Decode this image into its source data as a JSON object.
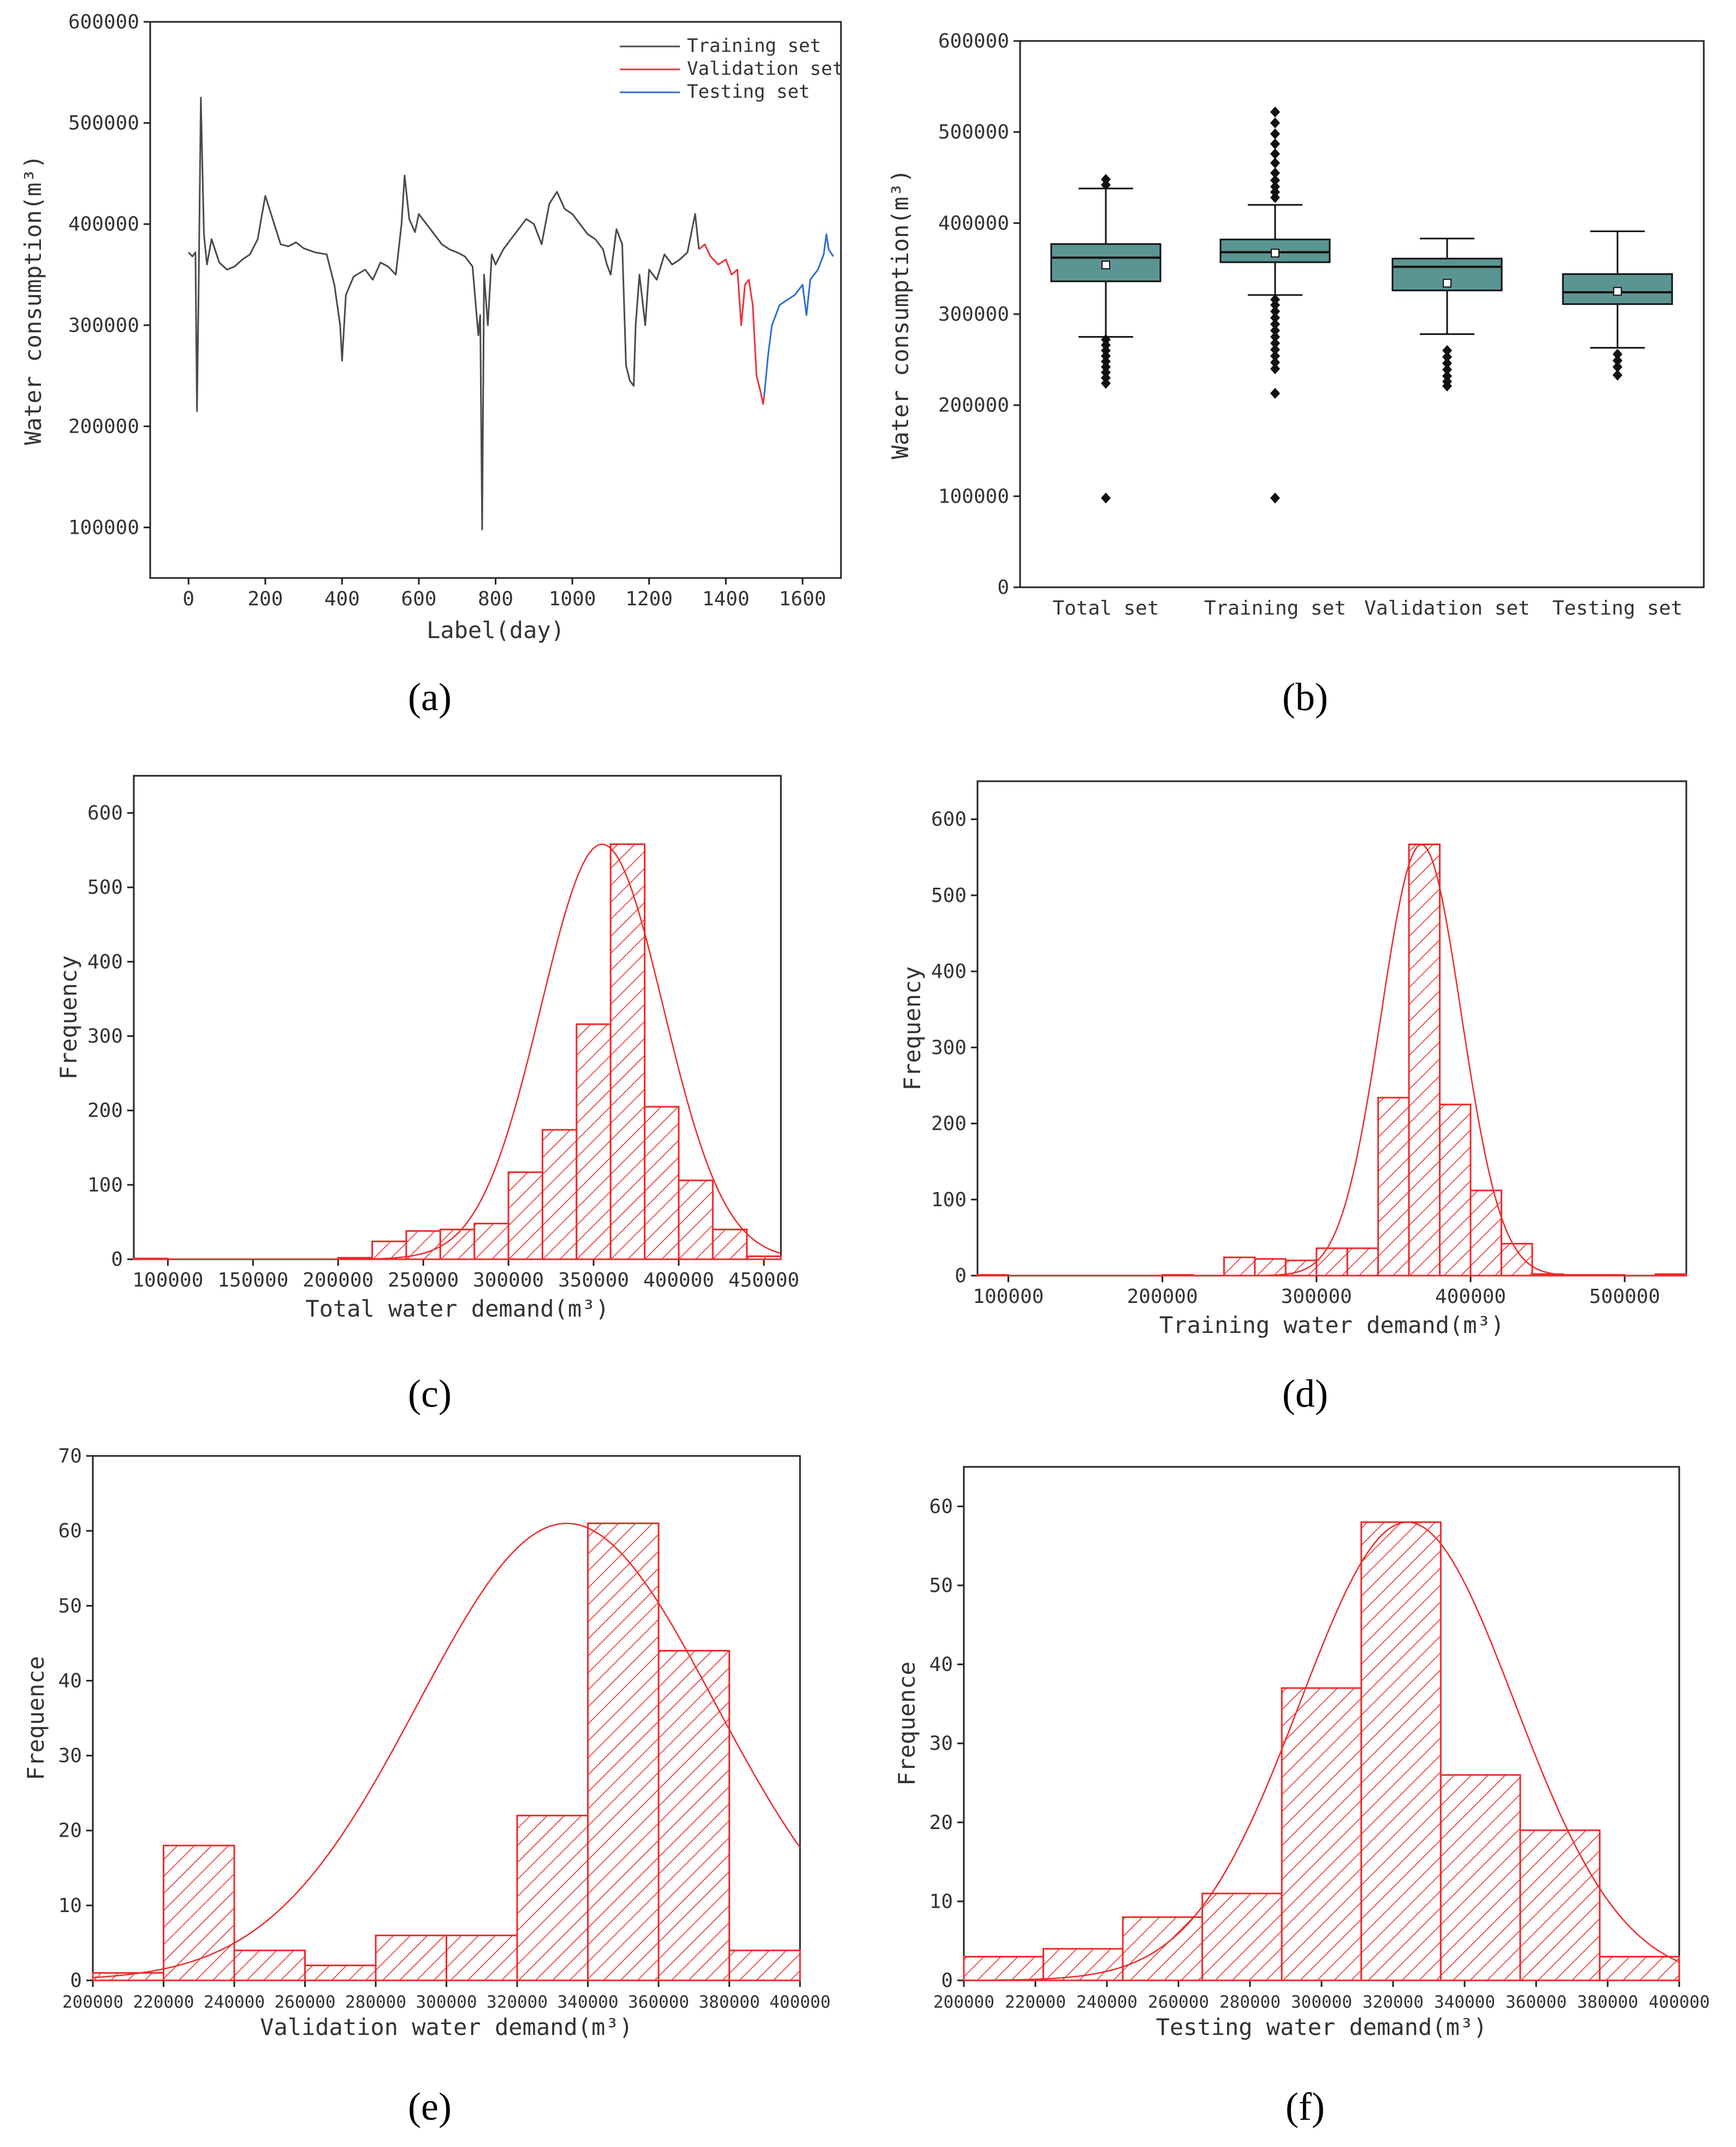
{
  "figure": {
    "panels": [
      "(a)",
      "(b)",
      "(c)",
      "(d)",
      "(e)",
      "(f)"
    ]
  },
  "colors": {
    "training": "#4a4a4a",
    "validation": "#e8363c",
    "testing": "#2d6fd4",
    "box_fill": "#5b9593",
    "hist": "#ee2a2a"
  },
  "chart_data": [
    {
      "id": "a",
      "type": "line",
      "xlabel": "Label(day)",
      "ylabel": "Water consumption(m³)",
      "xlim": [
        -100,
        1700
      ],
      "ylim": [
        50000,
        600000
      ],
      "xticks": [
        0,
        200,
        400,
        600,
        800,
        1000,
        1200,
        1400,
        1600
      ],
      "yticks": [
        100000,
        200000,
        300000,
        400000,
        500000,
        600000
      ],
      "xtick_labels": [
        "0",
        "200",
        "400",
        "600",
        "800",
        "1000",
        "1200",
        "1400",
        "1600"
      ],
      "ytick_labels": [
        "100000",
        "200000",
        "300000",
        "400000",
        "500000",
        "600000"
      ],
      "legend": [
        "Training set",
        "Validation set",
        "Testing set"
      ],
      "series": [
        {
          "name": "Training set",
          "points": [
            [
              0,
              372000
            ],
            [
              10,
              368000
            ],
            [
              18,
              372000
            ],
            [
              22,
              215000
            ],
            [
              26,
              330000
            ],
            [
              32,
              525000
            ],
            [
              40,
              390000
            ],
            [
              48,
              360000
            ],
            [
              60,
              385000
            ],
            [
              80,
              362000
            ],
            [
              100,
              355000
            ],
            [
              120,
              358000
            ],
            [
              140,
              365000
            ],
            [
              160,
              370000
            ],
            [
              180,
              385000
            ],
            [
              200,
              428000
            ],
            [
              215,
              410000
            ],
            [
              240,
              380000
            ],
            [
              260,
              378000
            ],
            [
              280,
              382000
            ],
            [
              300,
              376000
            ],
            [
              330,
              372000
            ],
            [
              360,
              370000
            ],
            [
              380,
              340000
            ],
            [
              395,
              300000
            ],
            [
              400,
              265000
            ],
            [
              410,
              330000
            ],
            [
              430,
              348000
            ],
            [
              460,
              355000
            ],
            [
              480,
              345000
            ],
            [
              500,
              362000
            ],
            [
              520,
              358000
            ],
            [
              540,
              350000
            ],
            [
              555,
              400000
            ],
            [
              563,
              448000
            ],
            [
              575,
              405000
            ],
            [
              590,
              392000
            ],
            [
              600,
              410000
            ],
            [
              620,
              400000
            ],
            [
              640,
              390000
            ],
            [
              660,
              380000
            ],
            [
              680,
              375000
            ],
            [
              700,
              372000
            ],
            [
              720,
              368000
            ],
            [
              740,
              358000
            ],
            [
              755,
              290000
            ],
            [
              760,
              310000
            ],
            [
              765,
              98000
            ],
            [
              770,
              350000
            ],
            [
              780,
              300000
            ],
            [
              790,
              370000
            ],
            [
              800,
              360000
            ],
            [
              820,
              375000
            ],
            [
              840,
              385000
            ],
            [
              860,
              395000
            ],
            [
              880,
              405000
            ],
            [
              900,
              400000
            ],
            [
              920,
              380000
            ],
            [
              940,
              420000
            ],
            [
              960,
              432000
            ],
            [
              980,
              415000
            ],
            [
              1000,
              410000
            ],
            [
              1020,
              400000
            ],
            [
              1040,
              390000
            ],
            [
              1060,
              385000
            ],
            [
              1080,
              375000
            ],
            [
              1090,
              360000
            ],
            [
              1100,
              350000
            ],
            [
              1115,
              395000
            ],
            [
              1130,
              380000
            ],
            [
              1140,
              260000
            ],
            [
              1150,
              245000
            ],
            [
              1160,
              240000
            ],
            [
              1165,
              300000
            ],
            [
              1175,
              350000
            ],
            [
              1190,
              300000
            ],
            [
              1200,
              355000
            ],
            [
              1220,
              345000
            ],
            [
              1240,
              370000
            ],
            [
              1260,
              360000
            ],
            [
              1280,
              365000
            ],
            [
              1300,
              372000
            ],
            [
              1320,
              410000
            ],
            [
              1330,
              375000
            ]
          ]
        },
        {
          "name": "Validation set",
          "points": [
            [
              1330,
              375000
            ],
            [
              1345,
              380000
            ],
            [
              1360,
              368000
            ],
            [
              1380,
              360000
            ],
            [
              1400,
              365000
            ],
            [
              1415,
              350000
            ],
            [
              1430,
              355000
            ],
            [
              1440,
              300000
            ],
            [
              1450,
              340000
            ],
            [
              1460,
              345000
            ],
            [
              1470,
              320000
            ],
            [
              1480,
              250000
            ],
            [
              1490,
              235000
            ],
            [
              1497,
              222000
            ],
            [
              1500,
              230000
            ]
          ]
        },
        {
          "name": "Testing set",
          "points": [
            [
              1500,
              230000
            ],
            [
              1510,
              270000
            ],
            [
              1520,
              300000
            ],
            [
              1540,
              320000
            ],
            [
              1560,
              325000
            ],
            [
              1580,
              330000
            ],
            [
              1600,
              340000
            ],
            [
              1610,
              310000
            ],
            [
              1620,
              345000
            ],
            [
              1640,
              355000
            ],
            [
              1655,
              370000
            ],
            [
              1662,
              390000
            ],
            [
              1668,
              375000
            ],
            [
              1680,
              368000
            ]
          ]
        }
      ]
    },
    {
      "id": "b",
      "type": "box",
      "ylabel": "Water consumption(m³)",
      "ylim": [
        0,
        600000
      ],
      "yticks": [
        0,
        100000,
        200000,
        300000,
        400000,
        500000,
        600000
      ],
      "ytick_labels": [
        "0",
        "100000",
        "200000",
        "300000",
        "400000",
        "500000",
        "600000"
      ],
      "categories": [
        "Total set",
        "Training set",
        "Validation set",
        "Testing set"
      ],
      "boxes": [
        {
          "q1": 336000,
          "median": 362000,
          "q3": 377000,
          "mean": 354000,
          "whisker_low": 275000,
          "whisker_high": 438000,
          "outliers": [
            448000,
            442000,
            272000,
            266000,
            260000,
            254000,
            248000,
            242000,
            236000,
            230000,
            224000,
            98000
          ]
        },
        {
          "q1": 357000,
          "median": 368000,
          "q3": 382000,
          "mean": 367000,
          "whisker_low": 321000,
          "whisker_high": 420000,
          "outliers": [
            522000,
            510000,
            498000,
            487000,
            476000,
            466000,
            455000,
            447000,
            440000,
            434000,
            428000,
            316000,
            310000,
            303000,
            296000,
            289000,
            282000,
            275000,
            268000,
            261000,
            254000,
            247000,
            240000,
            213000,
            98000
          ]
        },
        {
          "q1": 326000,
          "median": 352000,
          "q3": 361000,
          "mean": 334000,
          "whisker_low": 278000,
          "whisker_high": 383000,
          "outliers": [
            260000,
            253000,
            246000,
            239000,
            232000,
            226000,
            221000
          ]
        },
        {
          "q1": 311000,
          "median": 324000,
          "q3": 344000,
          "mean": 325000,
          "whisker_low": 263000,
          "whisker_high": 391000,
          "outliers": [
            256000,
            249000,
            242000,
            233000
          ]
        }
      ]
    },
    {
      "id": "c",
      "type": "histogram",
      "xlabel": "Total water demand(m³)",
      "ylabel": "Frequency",
      "xlim": [
        80000,
        460000
      ],
      "ylim": [
        0,
        650
      ],
      "xticks": [
        100000,
        150000,
        200000,
        250000,
        300000,
        350000,
        400000,
        450000
      ],
      "yticks": [
        0,
        100,
        200,
        300,
        400,
        500,
        600
      ],
      "xtick_labels": [
        "100000",
        "150000",
        "200000",
        "250000",
        "300000",
        "350000",
        "400000",
        "450000"
      ],
      "ytick_labels": [
        "0",
        "100",
        "200",
        "300",
        "400",
        "500",
        "600"
      ],
      "bin_edges": [
        80000,
        100000,
        120000,
        140000,
        160000,
        180000,
        200000,
        220000,
        240000,
        260000,
        280000,
        300000,
        320000,
        340000,
        360000,
        380000,
        400000,
        420000,
        440000,
        460000
      ],
      "counts": [
        1,
        0,
        0,
        0,
        0,
        0,
        2,
        24,
        38,
        40,
        48,
        117,
        174,
        316,
        558,
        205,
        106,
        40,
        4
      ],
      "normal_fit": {
        "mean": 355000,
        "sd": 36000,
        "peak": 558
      }
    },
    {
      "id": "d",
      "type": "histogram",
      "xlabel": "Training water demand(m³)",
      "ylabel": "Frequency",
      "xlim": [
        80000,
        540000
      ],
      "ylim": [
        0,
        650
      ],
      "xticks": [
        100000,
        200000,
        300000,
        400000,
        500000
      ],
      "yticks": [
        0,
        100,
        200,
        300,
        400,
        500,
        600
      ],
      "xtick_labels": [
        "100000",
        "200000",
        "300000",
        "400000",
        "500000"
      ],
      "ytick_labels": [
        "0",
        "100",
        "200",
        "300",
        "400",
        "500",
        "600"
      ],
      "bin_edges": [
        80000,
        100000,
        120000,
        140000,
        160000,
        180000,
        200000,
        220000,
        240000,
        260000,
        280000,
        300000,
        320000,
        340000,
        360000,
        380000,
        400000,
        420000,
        440000,
        460000,
        480000,
        500000,
        520000,
        540000
      ],
      "counts": [
        1,
        0,
        0,
        0,
        0,
        0,
        1,
        0,
        24,
        22,
        20,
        36,
        36,
        234,
        567,
        225,
        112,
        42,
        2,
        1,
        1,
        0,
        2
      ],
      "normal_fit": {
        "mean": 368000,
        "sd": 26000,
        "peak": 567
      }
    },
    {
      "id": "e",
      "type": "histogram",
      "xlabel": "Validation water demand(m³)",
      "ylabel": "Frequence",
      "xlim": [
        200000,
        400000
      ],
      "ylim": [
        0,
        70
      ],
      "xticks": [
        200000,
        220000,
        240000,
        260000,
        280000,
        300000,
        320000,
        340000,
        360000,
        380000,
        400000
      ],
      "yticks": [
        0,
        10,
        20,
        30,
        40,
        50,
        60,
        70
      ],
      "xtick_labels": [
        "200000",
        "220000",
        "240000",
        "260000",
        "280000",
        "300000",
        "320000",
        "340000",
        "360000",
        "380000",
        "400000"
      ],
      "ytick_labels": [
        "0",
        "10",
        "20",
        "30",
        "40",
        "50",
        "60",
        "70"
      ],
      "bin_edges": [
        200000,
        220000,
        240000,
        260000,
        280000,
        300000,
        320000,
        340000,
        360000,
        380000,
        400000
      ],
      "counts": [
        1,
        18,
        4,
        2,
        6,
        6,
        22,
        61,
        44,
        4
      ],
      "normal_fit": {
        "mean": 334000,
        "sd": 42000,
        "peak": 61
      }
    },
    {
      "id": "f",
      "type": "histogram",
      "xlabel": "Testing water demand(m³)",
      "ylabel": "Frequence",
      "xlim": [
        200000,
        400000
      ],
      "ylim": [
        0,
        65
      ],
      "xticks": [
        200000,
        220000,
        240000,
        260000,
        280000,
        300000,
        320000,
        340000,
        360000,
        380000,
        400000
      ],
      "yticks": [
        0,
        10,
        20,
        30,
        40,
        50,
        60
      ],
      "xtick_labels": [
        "200000",
        "220000",
        "240000",
        "260000",
        "280000",
        "300000",
        "320000",
        "340000",
        "360000",
        "380000",
        "400000"
      ],
      "ytick_labels": [
        "0",
        "10",
        "20",
        "30",
        "40",
        "50",
        "60"
      ],
      "bin_edges": [
        200000,
        222222,
        244444,
        266667,
        288889,
        311111,
        333333,
        355556,
        377778,
        400000
      ],
      "counts": [
        3,
        4,
        8,
        11,
        37,
        58,
        26,
        19,
        3
      ],
      "normal_fit": {
        "mean": 324000,
        "sd": 30000,
        "peak": 58
      }
    }
  ]
}
